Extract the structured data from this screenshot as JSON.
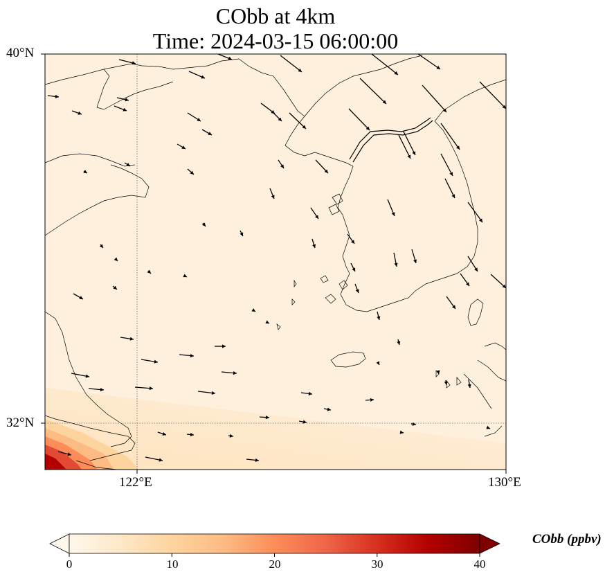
{
  "title": {
    "line1": "CObb at 4km",
    "line2": "Time: 2024-03-15 06:00:00"
  },
  "map": {
    "extent": {
      "lon_min": 120,
      "lon_max": 130,
      "lat_min": 31,
      "lat_max": 40
    },
    "gridlines": {
      "lon": [
        122
      ],
      "lat": [
        32
      ],
      "style": "dotted"
    },
    "lat_labels": [
      "40°N",
      "32°N"
    ],
    "lon_labels": [
      "122°E",
      "130°E"
    ],
    "background_color": "#fef0dd",
    "high_concentration_region": "southwest corner (near Shanghai)",
    "wind_vectors": "northwesterly over Korea and Yellow Sea, westerly/easterly near 32°N"
  },
  "colorbar": {
    "label": "CObb (ppbv)",
    "ticks": [
      "0",
      "10",
      "20",
      "30",
      "40"
    ],
    "min": 0,
    "max": 40,
    "colormap": "OrRd",
    "extend": "both",
    "colors": [
      "#fff7ec",
      "#fee8c8",
      "#fdd49e",
      "#fdbb84",
      "#fc8d59",
      "#ef6548",
      "#d7301f",
      "#b30000",
      "#7f0000"
    ]
  }
}
